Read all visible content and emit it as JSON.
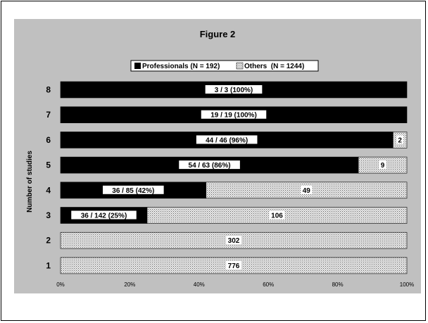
{
  "chart_data": {
    "type": "bar",
    "orientation": "horizontal",
    "stacked": "percent",
    "title": "Figure 2",
    "ylabel": "Number of studies",
    "xlabel": "",
    "categories": [
      "8",
      "7",
      "6",
      "5",
      "4",
      "3",
      "2",
      "1"
    ],
    "x_ticks": [
      "0%",
      "20%",
      "40%",
      "60%",
      "80%",
      "100%"
    ],
    "xlim": [
      0,
      100
    ],
    "legend_position": "top-center",
    "legend": [
      "Professionals (N = 192)",
      "Others  (N = 1244)"
    ],
    "series": [
      {
        "name": "Professionals (N = 192)",
        "color": "#000000",
        "values": [
          100,
          100,
          96,
          86,
          42,
          25,
          0,
          0
        ],
        "labels": [
          "3 / 3  (100%)",
          "19 / 19  (100%)",
          "44 / 46  (96%)",
          "54 / 63  (86%)",
          "36 / 85  (42%)",
          "36 / 142  (25%)",
          "",
          ""
        ]
      },
      {
        "name": "Others  (N = 1244)",
        "color": "#d8d8d8",
        "pattern": "dotted",
        "values": [
          0,
          0,
          4,
          14,
          58,
          75,
          100,
          100
        ],
        "labels": [
          "",
          "",
          "2",
          "9",
          "49",
          "106",
          "302",
          "776"
        ]
      }
    ]
  }
}
